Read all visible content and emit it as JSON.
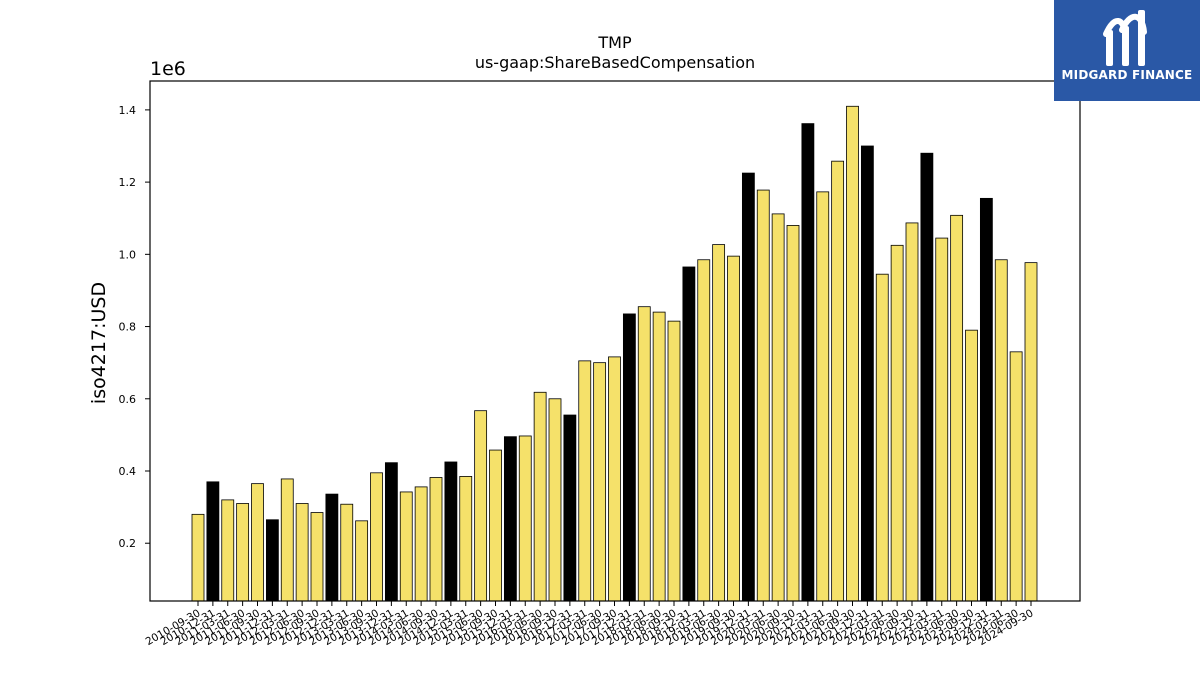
{
  "brand": {
    "name": "MIDGARD FINANCE",
    "bg_color": "#2a58a6"
  },
  "chart_data": {
    "type": "bar",
    "title": "TMP",
    "subtitle": "us-gaap:ShareBasedCompensation",
    "ylabel": "iso4217:USD",
    "y_offset_label": "1e6",
    "ylim": [
      0.04,
      1.48
    ],
    "yticks": [
      0.2,
      0.4,
      0.6,
      0.8,
      1.0,
      1.2,
      1.4
    ],
    "grid": false,
    "colors": {
      "quarter": "#f5e16a",
      "annual": "#000000",
      "edge": "#000000"
    },
    "categories": [
      "2010-09-30",
      "2010-12-31",
      "2011-03-31",
      "2011-06-30",
      "2011-09-30",
      "2011-12-31",
      "2012-03-31",
      "2012-06-30",
      "2012-09-30",
      "2012-12-31",
      "2013-03-31",
      "2013-06-30",
      "2013-09-30",
      "2013-12-31",
      "2014-03-31",
      "2014-06-30",
      "2014-09-30",
      "2014-12-31",
      "2015-03-31",
      "2015-06-30",
      "2015-09-30",
      "2015-12-31",
      "2016-03-31",
      "2016-06-30",
      "2016-09-30",
      "2016-12-31",
      "2017-03-31",
      "2017-06-30",
      "2017-09-30",
      "2017-12-31",
      "2018-03-31",
      "2018-06-30",
      "2018-09-30",
      "2018-12-31",
      "2019-03-31",
      "2019-06-30",
      "2019-09-30",
      "2019-12-31",
      "2020-03-31",
      "2020-06-30",
      "2020-09-30",
      "2020-12-31",
      "2021-03-31",
      "2021-06-30",
      "2021-09-30",
      "2021-12-31",
      "2022-03-31",
      "2022-06-30",
      "2022-09-30",
      "2022-12-31",
      "2023-03-31",
      "2023-06-30",
      "2023-09-30",
      "2023-12-31",
      "2024-03-31",
      "2024-06-30",
      "2024-09-30"
    ],
    "values": [
      0.28,
      0.37,
      0.32,
      0.31,
      0.365,
      0.265,
      0.378,
      0.31,
      0.285,
      0.336,
      0.308,
      0.262,
      0.395,
      0.423,
      0.342,
      0.356,
      0.382,
      0.425,
      0.385,
      0.567,
      0.458,
      0.495,
      0.497,
      0.618,
      0.6,
      0.555,
      0.705,
      0.7,
      0.716,
      0.835,
      0.855,
      0.84,
      0.815,
      0.965,
      0.985,
      1.027,
      0.995,
      1.225,
      1.178,
      1.112,
      1.08,
      1.362,
      1.173,
      1.258,
      1.41,
      1.3,
      0.945,
      1.025,
      1.087,
      1.28,
      1.045,
      1.108,
      0.79,
      1.155,
      0.985,
      0.73,
      0.977
    ],
    "annual": [
      false,
      true,
      false,
      false,
      false,
      true,
      false,
      false,
      false,
      true,
      false,
      false,
      false,
      true,
      false,
      false,
      false,
      true,
      false,
      false,
      false,
      true,
      false,
      false,
      false,
      true,
      false,
      false,
      false,
      true,
      false,
      false,
      false,
      true,
      false,
      false,
      false,
      true,
      false,
      false,
      false,
      true,
      false,
      false,
      false,
      true,
      false,
      false,
      false,
      true,
      false,
      false,
      false,
      true,
      false,
      false,
      false
    ]
  }
}
